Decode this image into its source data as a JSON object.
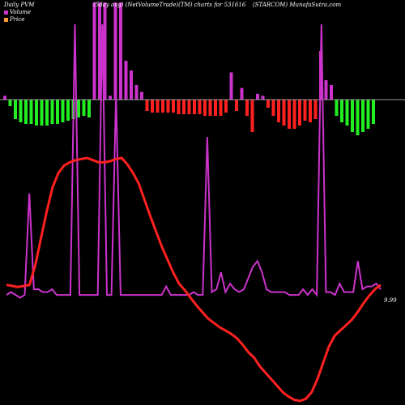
{
  "header": {
    "left": "Daily PVM",
    "center": "(5day avg) (NetVolumeTrade)(TM) charts for 531616",
    "right": "(STARCOM) MunafaSutra.com"
  },
  "legend": [
    {
      "label": "Volume",
      "color": "#cc33cc"
    },
    {
      "label": "Price",
      "color": "#ff9933"
    }
  ],
  "last_price_label": "9.99",
  "chart_data": [
    {
      "type": "bar",
      "title": "",
      "xlabel": "",
      "ylabel": "",
      "bar_colors": {
        "positive_up": "#cc33cc",
        "positive_down": "#ff2020",
        "negative": "#22ee22"
      },
      "values": [
        4,
        -4,
        -12,
        -14,
        -15,
        -15,
        -16,
        -16,
        -16,
        -15,
        -15,
        -14,
        -13,
        -12,
        -11,
        -10,
        -11,
        100,
        100,
        100,
        4,
        100,
        100,
        40,
        30,
        15,
        8,
        -7,
        -8,
        -8,
        -8,
        -8,
        -8,
        -9,
        -9,
        -9,
        -9,
        -9,
        -10,
        -10,
        -10,
        -10,
        -8,
        28,
        -7,
        12,
        -10,
        -20,
        6,
        4,
        -5,
        -10,
        -14,
        -16,
        -18,
        -18,
        -16,
        -13,
        -14,
        -12,
        50,
        20,
        15,
        -10,
        -14,
        -16,
        -20,
        -22,
        -20,
        -18,
        -15
      ],
      "sign_colors": [
        "m",
        "g",
        "g",
        "g",
        "g",
        "g",
        "g",
        "g",
        "g",
        "g",
        "g",
        "g",
        "g",
        "g",
        "g",
        "g",
        "g",
        "m",
        "m",
        "m",
        "m",
        "m",
        "m",
        "m",
        "m",
        "m",
        "m",
        "r",
        "r",
        "r",
        "r",
        "r",
        "r",
        "r",
        "r",
        "r",
        "r",
        "r",
        "r",
        "r",
        "r",
        "r",
        "r",
        "m",
        "r",
        "m",
        "r",
        "r",
        "m",
        "m",
        "r",
        "r",
        "r",
        "r",
        "r",
        "r",
        "r",
        "r",
        "r",
        "r",
        "m",
        "m",
        "m",
        "g",
        "g",
        "g",
        "g",
        "g",
        "g",
        "g",
        "g"
      ]
    },
    {
      "type": "line",
      "series": [
        {
          "name": "Volume",
          "color": "#cc33cc",
          "values": [
            4,
            5,
            4,
            3,
            4,
            40,
            6,
            6,
            5,
            5,
            6,
            4,
            4,
            4,
            4,
            100,
            4,
            4,
            4,
            4,
            4,
            100,
            4,
            4,
            75,
            4,
            4,
            4,
            4,
            4,
            4,
            4,
            4,
            4,
            4,
            7,
            4,
            4,
            4,
            4,
            4,
            5,
            4,
            4,
            60,
            5,
            6,
            12,
            5,
            8,
            6,
            5,
            6,
            10,
            14,
            16,
            12,
            6,
            5,
            5,
            5,
            5,
            4,
            4,
            4,
            6,
            4,
            6,
            4,
            100,
            5,
            5,
            4,
            8,
            5,
            5,
            5,
            16,
            6,
            7,
            7,
            8,
            6
          ]
        },
        {
          "name": "Price",
          "color": "#ff2020",
          "values": [
            7,
            6,
            5,
            6,
            7,
            25,
            50,
            75,
            97,
            110,
            117,
            120,
            122,
            123,
            124,
            122,
            120,
            120,
            121,
            123,
            124,
            118,
            110,
            100,
            85,
            70,
            56,
            42,
            30,
            18,
            8,
            2,
            -5,
            -12,
            -18,
            -24,
            -28,
            -32,
            -35,
            -38,
            -42,
            -48,
            -55,
            -60,
            -68,
            -74,
            -80,
            -86,
            -92,
            -96,
            -99,
            -100,
            -98,
            -92,
            -80,
            -65,
            -50,
            -40,
            -35,
            -30,
            -25,
            -18,
            -10,
            -3,
            3,
            7
          ]
        }
      ]
    }
  ]
}
